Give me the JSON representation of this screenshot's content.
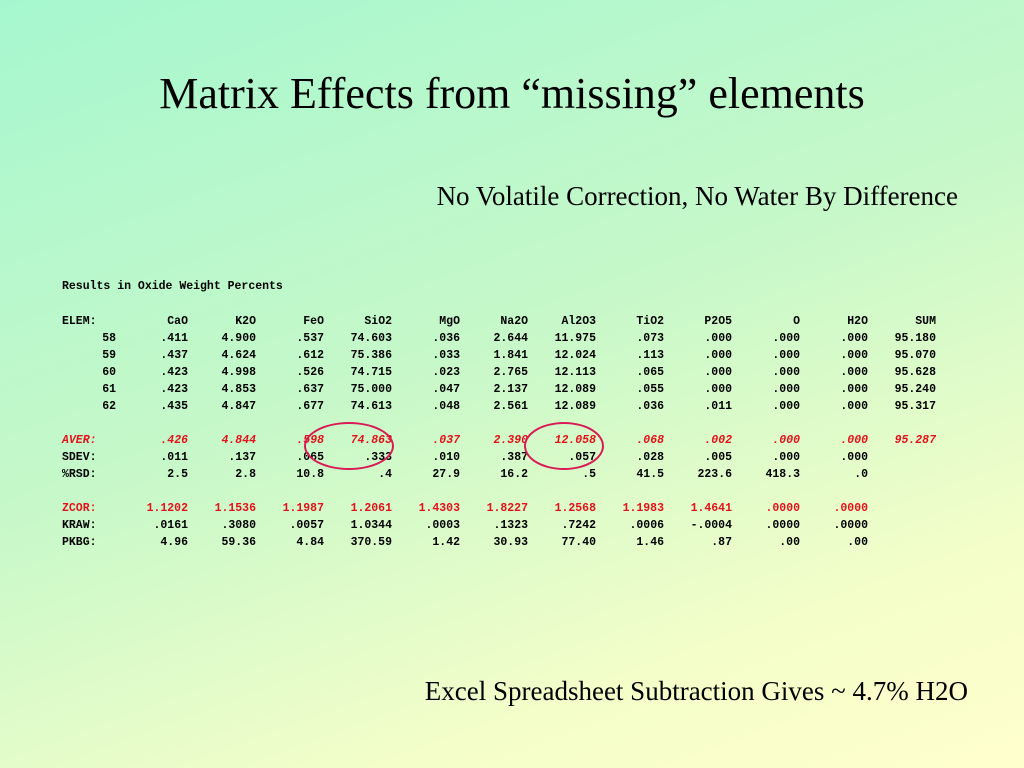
{
  "slide": {
    "title": "Matrix Effects from “missing” elements",
    "subtitle": "No Volatile Correction, No Water By Difference",
    "footer": "Excel Spreadsheet Subtraction Gives ~ 4.7% H2O"
  },
  "results": {
    "title": "Results in Oxide Weight Percents",
    "header": [
      "ELEM:",
      "CaO",
      "K2O",
      "FeO",
      "SiO2",
      "MgO",
      "Na2O",
      "Al2O3",
      "TiO2",
      "P2O5",
      "O",
      "H2O",
      "SUM"
    ],
    "rows": [
      [
        "58",
        ".411",
        "4.900",
        ".537",
        "74.603",
        ".036",
        "2.644",
        "11.975",
        ".073",
        ".000",
        ".000",
        ".000",
        "95.180"
      ],
      [
        "59",
        ".437",
        "4.624",
        ".612",
        "75.386",
        ".033",
        "1.841",
        "12.024",
        ".113",
        ".000",
        ".000",
        ".000",
        "95.070"
      ],
      [
        "60",
        ".423",
        "4.998",
        ".526",
        "74.715",
        ".023",
        "2.765",
        "12.113",
        ".065",
        ".000",
        ".000",
        ".000",
        "95.628"
      ],
      [
        "61",
        ".423",
        "4.853",
        ".637",
        "75.000",
        ".047",
        "2.137",
        "12.089",
        ".055",
        ".000",
        ".000",
        ".000",
        "95.240"
      ],
      [
        "62",
        ".435",
        "4.847",
        ".677",
        "74.613",
        ".048",
        "2.561",
        "12.089",
        ".036",
        ".011",
        ".000",
        ".000",
        "95.317"
      ]
    ],
    "stats": [
      [
        "AVER:",
        ".426",
        "4.844",
        ".598",
        "74.863",
        ".037",
        "2.390",
        "12.058",
        ".068",
        ".002",
        ".000",
        ".000",
        "95.287"
      ],
      [
        "SDEV:",
        ".011",
        ".137",
        ".065",
        ".333",
        ".010",
        ".387",
        ".057",
        ".028",
        ".005",
        ".000",
        ".000",
        ""
      ],
      [
        "%RSD:",
        "2.5",
        "2.8",
        "10.8",
        ".4",
        "27.9",
        "16.2",
        ".5",
        "41.5",
        "223.6",
        "418.3",
        ".0",
        ""
      ]
    ],
    "corrections": [
      [
        "ZCOR:",
        "1.1202",
        "1.1536",
        "1.1987",
        "1.2061",
        "1.4303",
        "1.8227",
        "1.2568",
        "1.1983",
        "1.4641",
        ".0000",
        ".0000",
        ""
      ],
      [
        "KRAW:",
        ".0161",
        ".3080",
        ".0057",
        "1.0344",
        ".0003",
        ".1323",
        ".7242",
        ".0006",
        "-.0004",
        ".0000",
        ".0000",
        ""
      ],
      [
        "PKBG:",
        "4.96",
        "59.36",
        "4.84",
        "370.59",
        "1.42",
        "30.93",
        "77.40",
        "1.46",
        ".87",
        ".00",
        ".00",
        ""
      ]
    ]
  },
  "colors": {
    "highlight_text": "#e3111b",
    "circle_stroke": "#d81b55"
  }
}
